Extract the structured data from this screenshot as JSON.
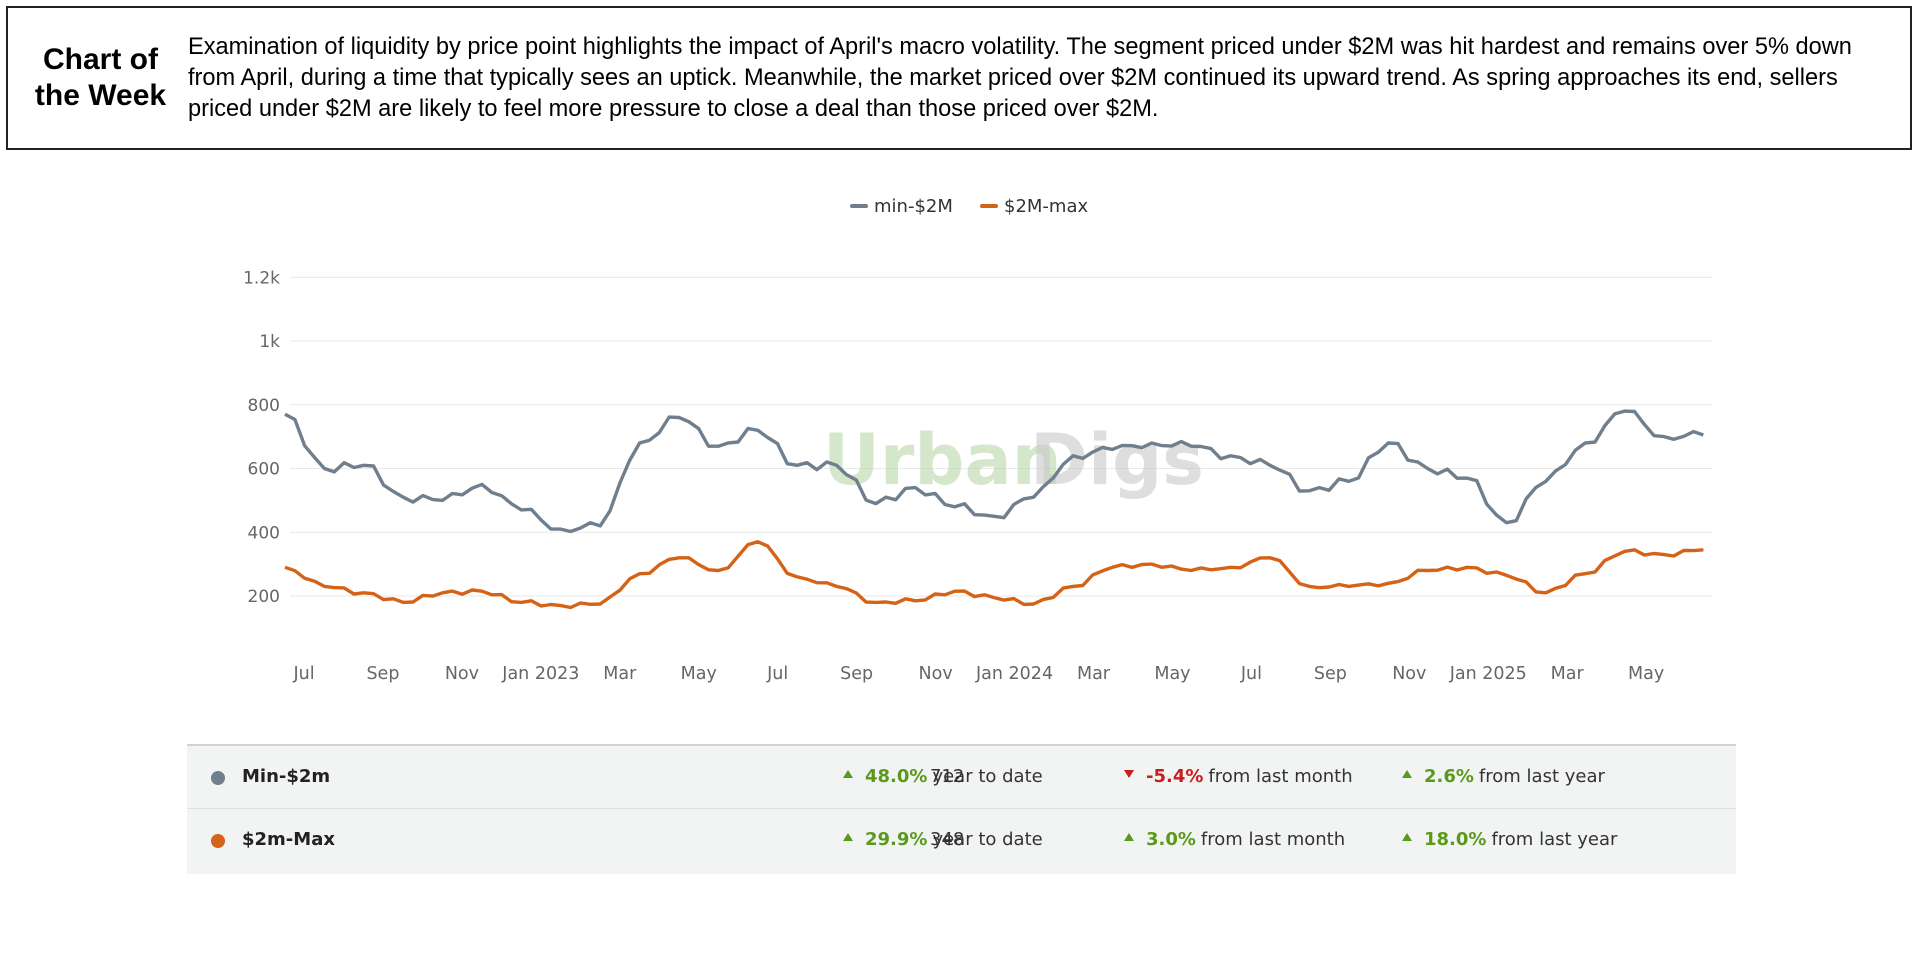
{
  "header": {
    "title_line1": "Chart of",
    "title_line2": "the Week",
    "description": "Examination of liquidity by price point highlights the impact of April's macro volatility. The segment priced under $2M was hit hardest and remains over 5% down from April, during a time that typically sees an uptick. Meanwhile, the market priced over $2M continued its upward trend. As spring approaches its end, sellers priced under $2M are likely to feel more pressure to close a deal than those priced over $2M."
  },
  "watermark": {
    "part1": "Urban",
    "part2": "Digs"
  },
  "chart_data": {
    "type": "line",
    "title": "",
    "xlabel": "",
    "ylabel": "",
    "ylim": [
      0,
      1200
    ],
    "yticks": [
      200,
      400,
      600,
      800,
      1000,
      1200
    ],
    "ytick_labels": [
      "200",
      "400",
      "600",
      "800",
      "1k",
      "1.2k"
    ],
    "xtick_labels": [
      "Jul",
      "Sep",
      "Nov",
      "Jan 2023",
      "Mar",
      "May",
      "Jul",
      "Sep",
      "Nov",
      "Jan 2024",
      "Mar",
      "May",
      "Jul",
      "Sep",
      "Nov",
      "Jan 2025",
      "Mar",
      "May"
    ],
    "grid": true,
    "legend_position": "top-center",
    "x_frequency": "monthly (approximate, readings mid-month)",
    "x": [
      "2022-06",
      "2022-07",
      "2022-08",
      "2022-09",
      "2022-10",
      "2022-11",
      "2022-12",
      "2023-01",
      "2023-02",
      "2023-03",
      "2023-04",
      "2023-05",
      "2023-06",
      "2023-07",
      "2023-08",
      "2023-09",
      "2023-10",
      "2023-11",
      "2023-12",
      "2024-01",
      "2024-02",
      "2024-03",
      "2024-04",
      "2024-05",
      "2024-06",
      "2024-07",
      "2024-08",
      "2024-09",
      "2024-10",
      "2024-11",
      "2024-12",
      "2025-01",
      "2025-02",
      "2025-03",
      "2025-04",
      "2025-05",
      "2025-06"
    ],
    "series": [
      {
        "name": "min-$2M",
        "color": "#6f7f8d",
        "values": [
          770,
          600,
          610,
          510,
          500,
          550,
          470,
          410,
          420,
          680,
          760,
          670,
          720,
          610,
          610,
          490,
          540,
          480,
          450,
          510,
          640,
          660,
          680,
          670,
          640,
          610,
          530,
          560,
          680,
          600,
          570,
          430,
          560,
          680,
          780,
          700,
          705
        ]
      },
      {
        "name": "$2M-max",
        "color": "#d46317",
        "values": [
          290,
          230,
          210,
          180,
          210,
          215,
          180,
          170,
          175,
          270,
          320,
          280,
          370,
          260,
          230,
          180,
          185,
          215,
          195,
          175,
          230,
          290,
          300,
          280,
          290,
          320,
          230,
          230,
          240,
          280,
          290,
          265,
          210,
          270,
          340,
          330,
          345
        ]
      }
    ]
  },
  "stats": [
    {
      "name": "Min-$2m",
      "color": "#6f7f8d",
      "value": "712",
      "metrics": [
        {
          "dir": "up",
          "pct": "48.0%",
          "label": "year to date"
        },
        {
          "dir": "down",
          "pct": "-5.4%",
          "label": "from last month"
        },
        {
          "dir": "up",
          "pct": "2.6%",
          "label": "from last year"
        }
      ]
    },
    {
      "name": "$2m-Max",
      "color": "#d46317",
      "value": "348",
      "metrics": [
        {
          "dir": "up",
          "pct": "29.9%",
          "label": "year to date"
        },
        {
          "dir": "up",
          "pct": "3.0%",
          "label": "from last month"
        },
        {
          "dir": "up",
          "pct": "18.0%",
          "label": "from last year"
        }
      ]
    }
  ]
}
